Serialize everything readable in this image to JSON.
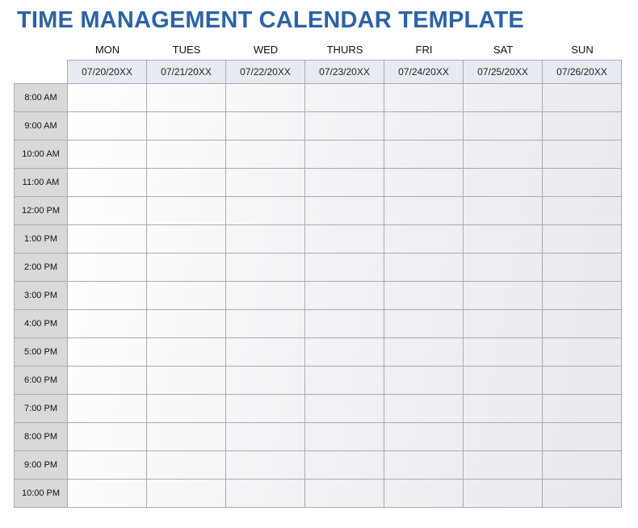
{
  "title": "TIME MANAGEMENT CALENDAR TEMPLATE",
  "days": [
    {
      "label": "MON",
      "date": "07/20/20XX"
    },
    {
      "label": "TUES",
      "date": "07/21/20XX"
    },
    {
      "label": "WED",
      "date": "07/22/20XX"
    },
    {
      "label": "THURS",
      "date": "07/23/20XX"
    },
    {
      "label": "FRI",
      "date": "07/24/20XX"
    },
    {
      "label": "SAT",
      "date": "07/25/20XX"
    },
    {
      "label": "SUN",
      "date": "07/26/20XX"
    }
  ],
  "times": [
    "8:00 AM",
    "9:00 AM",
    "10:00 AM",
    "11:00 AM",
    "12:00 PM",
    "1:00 PM",
    "2:00 PM",
    "3:00 PM",
    "4:00 PM",
    "5:00 PM",
    "6:00 PM",
    "7:00 PM",
    "8:00 PM",
    "9:00 PM",
    "10:00 PM"
  ],
  "colors": {
    "title": "#2c63a6",
    "time_cell": "#d9d9d9",
    "date_header": "#e7ebf1",
    "border": "#a9abae"
  }
}
